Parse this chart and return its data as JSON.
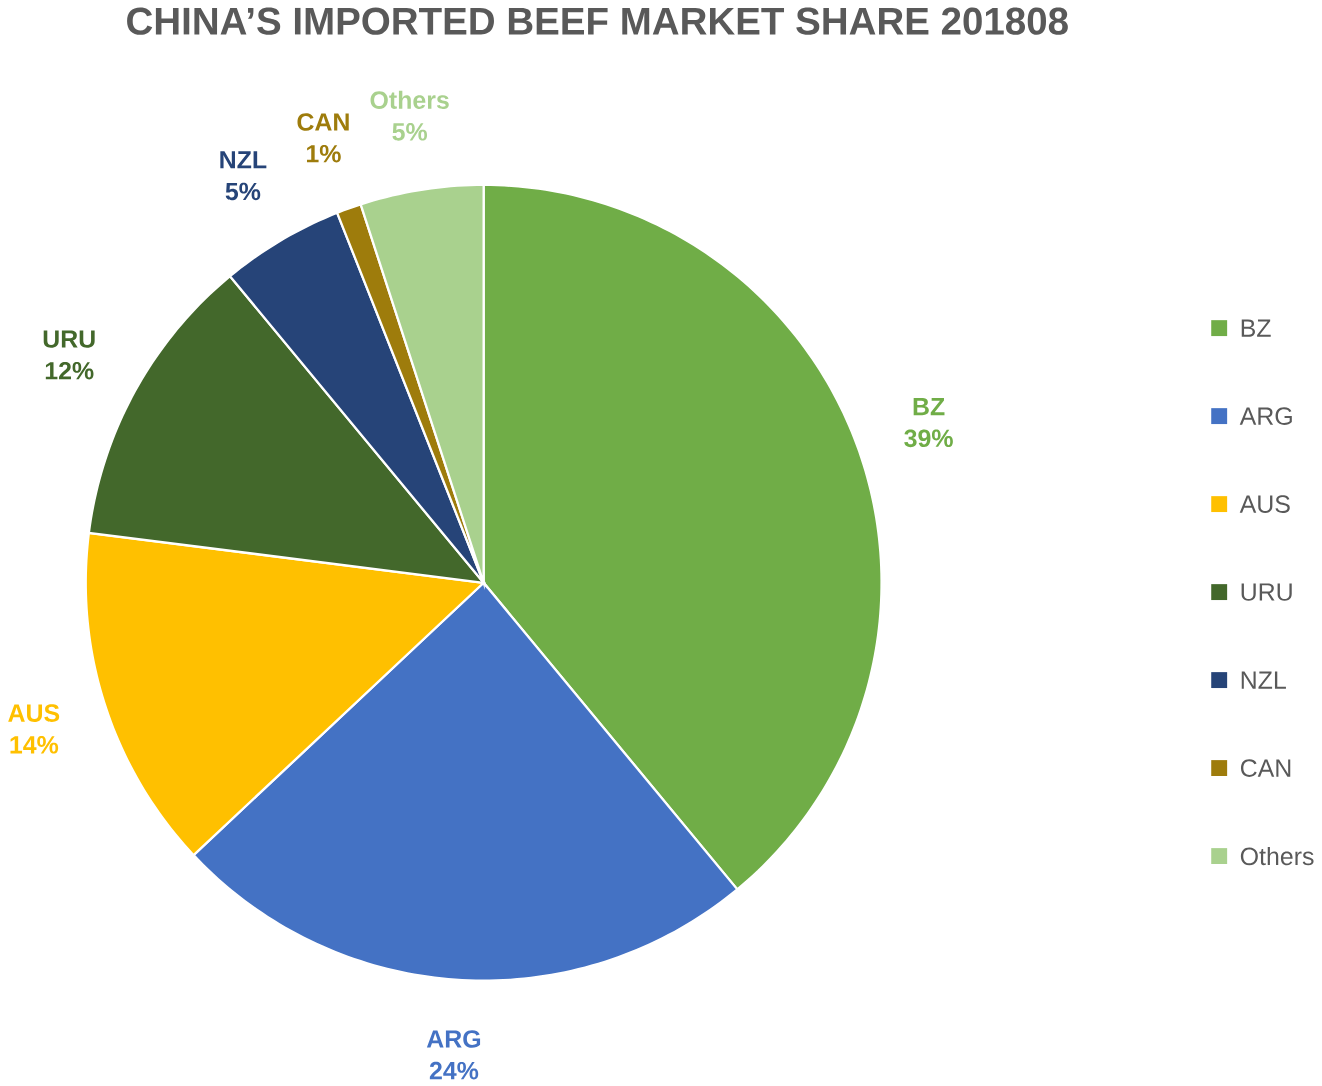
{
  "chart_data": {
    "type": "pie",
    "title": "CHINA’S IMPORTED BEEF MARKET SHARE 201808",
    "categories": [
      "BZ",
      "ARG",
      "AUS",
      "URU",
      "NZL",
      "CAN",
      "Others"
    ],
    "values": [
      39,
      24,
      14,
      12,
      5,
      1,
      5
    ],
    "value_labels": [
      "39%",
      "24%",
      "14%",
      "12%",
      "5%",
      "1%",
      "5%"
    ],
    "colors": [
      "#70ad47",
      "#4472c4",
      "#ffc000",
      "#43682b",
      "#264478",
      "#9e7c0c",
      "#a9d18e"
    ],
    "legend": "right"
  }
}
